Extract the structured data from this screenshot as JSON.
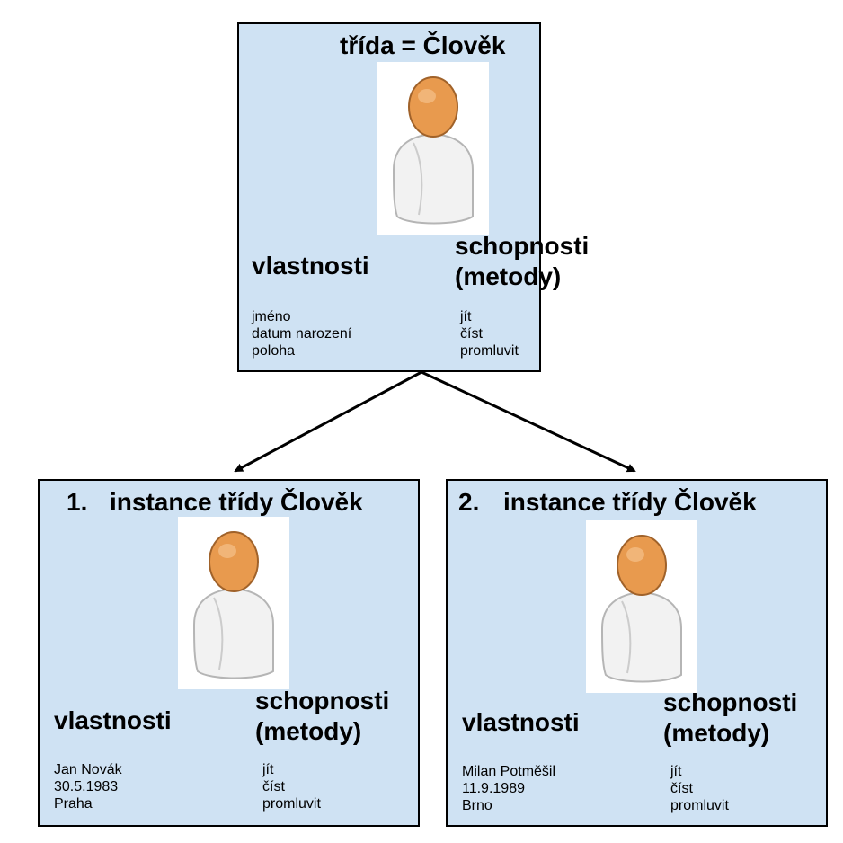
{
  "class_box": {
    "title": "třída = Člověk",
    "props_heading": "vlastnosti",
    "methods_heading_1": "schopnosti",
    "methods_heading_2": "(metody)",
    "properties": [
      "jméno",
      "datum narození",
      "poloha"
    ],
    "methods": [
      "jít",
      "číst",
      "promluvit"
    ]
  },
  "instance_1": {
    "number": "1.",
    "title": "instance třídy Člověk",
    "props_heading": "vlastnosti",
    "methods_heading_1": "schopnosti",
    "methods_heading_2": "(metody)",
    "properties": [
      "Jan Novák",
      "30.5.1983",
      "Praha"
    ],
    "methods": [
      "jít",
      "číst",
      "promluvit"
    ]
  },
  "instance_2": {
    "number": "2.",
    "title": "instance třídy Člověk",
    "props_heading": "vlastnosti",
    "methods_heading_1": "schopnosti",
    "methods_heading_2": "(metody)",
    "properties": [
      "Milan Potměšil",
      "11.9.1989",
      "Brno"
    ],
    "methods": [
      "jít",
      "číst",
      "promluvit"
    ]
  },
  "colors": {
    "box_fill": "#cfe2f3",
    "border": "#000000",
    "avatar_skin": "#e89a4e",
    "avatar_body": "#f2f2f2"
  },
  "icons": [
    "person-icon"
  ]
}
